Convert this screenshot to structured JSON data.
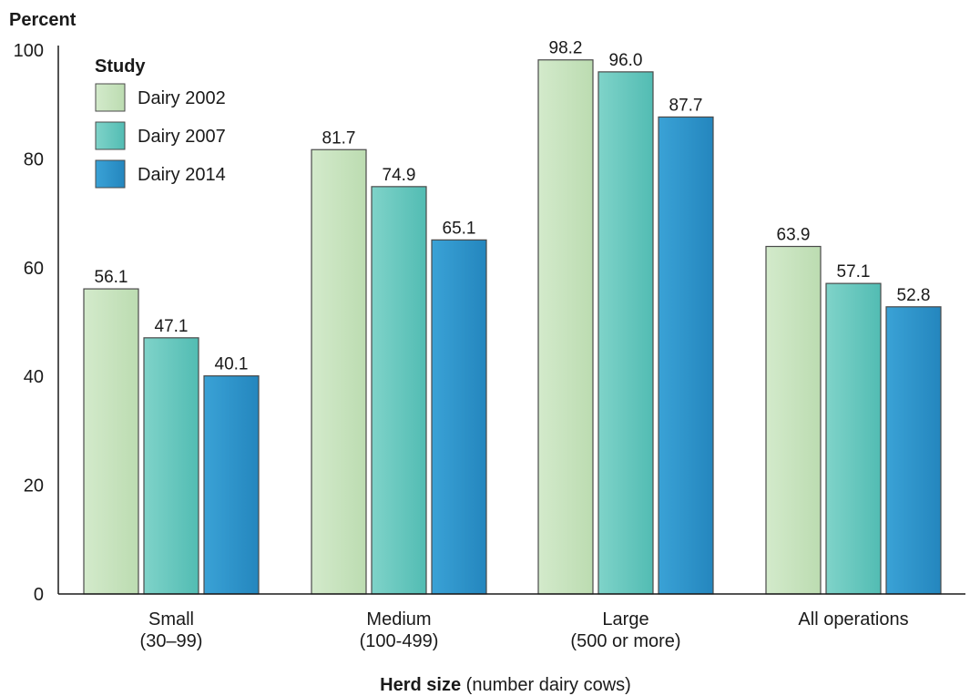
{
  "chart_data": {
    "type": "bar",
    "title": "",
    "ylabel": "Percent",
    "xlabel_bold": "Herd size",
    "xlabel_rest": " (number dairy cows)",
    "ylim": [
      0,
      100
    ],
    "yticks": [
      0,
      20,
      40,
      60,
      80,
      100
    ],
    "categories": [
      [
        "Small",
        "(30–99)"
      ],
      [
        "Medium",
        "(100-499)"
      ],
      [
        "Large",
        "(500 or more)"
      ],
      [
        "All operations"
      ]
    ],
    "legend_title": "Study",
    "legend_position": "top-left",
    "series": [
      {
        "name": "Dairy 2002",
        "values": [
          56.1,
          81.7,
          98.2,
          63.9
        ],
        "color": "#c5e3bb",
        "labels": [
          "56.1",
          "81.7",
          "98.2",
          "63.9"
        ]
      },
      {
        "name": "Dairy 2007",
        "values": [
          47.1,
          74.9,
          96.0,
          57.1
        ],
        "color": "#5ec7be",
        "labels": [
          "47.1",
          "74.9",
          "96.0",
          "57.1"
        ]
      },
      {
        "name": "Dairy 2014",
        "values": [
          40.1,
          65.1,
          87.7,
          52.8
        ],
        "color": "#2a93cc",
        "labels": [
          "40.1",
          "65.1",
          "87.7",
          "52.8"
        ]
      }
    ]
  }
}
